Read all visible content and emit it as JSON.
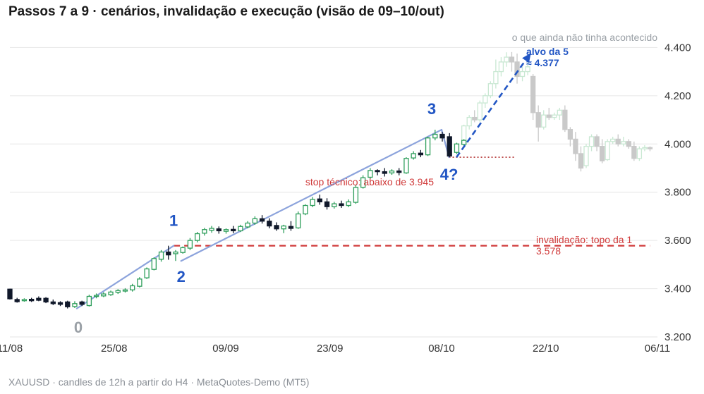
{
  "title": "Passos 7 a 9 · cenários, invalidação e execução (visão de 09–10/out)",
  "footer": "XAUUSD · candles de 12h a partir do H4 · MetaQuotes-Demo (MT5)",
  "colors": {
    "bull": "#2e9e5b",
    "bear": "#10182a",
    "future": "#c9c9c9",
    "future_bull": "#c9e8d3",
    "wave_line": "#8ca3dc",
    "wave_label": "#2256c4",
    "wave0_label": "#9aa0a6",
    "invalidation": "#d03a3a",
    "projection": "#2256c4",
    "grid": "#e6e6e6",
    "axis_text": "#333333"
  },
  "chart_data": {
    "type": "candlestick",
    "title": "Passos 7 a 9 · cenários, invalidação e execução (visão de 09–10/out)",
    "ylim": [
      3200,
      4480
    ],
    "y_ticks": [
      "4.400",
      "4.200",
      "4.000",
      "3.800",
      "3.600",
      "3.400",
      "3.200"
    ],
    "y_tick_values": [
      4400,
      4200,
      4000,
      3800,
      3600,
      3400,
      3200
    ],
    "x_range": [
      "2025-08-11",
      "2025-11-06"
    ],
    "x_ticks": [
      "11/08",
      "25/08",
      "09/09",
      "23/09",
      "08/10",
      "22/10",
      "06/11"
    ],
    "x_tick_dates": [
      "2025-08-11",
      "2025-08-25",
      "2025-09-09",
      "2025-09-23",
      "2025-10-08",
      "2025-10-22",
      "2025-11-06"
    ],
    "candles_seen": [
      {
        "t": "2025-08-11",
        "o": 3398,
        "h": 3400,
        "c": 3358,
        "l": 3355
      },
      {
        "t": "2025-08-12",
        "o": 3355,
        "h": 3362,
        "c": 3346,
        "l": 3342
      },
      {
        "t": "2025-08-13",
        "o": 3350,
        "h": 3360,
        "c": 3355,
        "l": 3346
      },
      {
        "t": "2025-08-14",
        "o": 3356,
        "h": 3362,
        "c": 3350,
        "l": 3345
      },
      {
        "t": "2025-08-15",
        "o": 3360,
        "h": 3368,
        "c": 3352,
        "l": 3348
      },
      {
        "t": "2025-08-16",
        "o": 3360,
        "h": 3365,
        "c": 3345,
        "l": 3340
      },
      {
        "t": "2025-08-17",
        "o": 3345,
        "h": 3355,
        "c": 3338,
        "l": 3332
      },
      {
        "t": "2025-08-18",
        "o": 3342,
        "h": 3348,
        "c": 3335,
        "l": 3328
      },
      {
        "t": "2025-08-19",
        "o": 3345,
        "h": 3350,
        "c": 3325,
        "l": 3318
      },
      {
        "t": "2025-08-20",
        "o": 3326,
        "h": 3348,
        "c": 3338,
        "l": 3320
      },
      {
        "t": "2025-08-21",
        "o": 3345,
        "h": 3350,
        "c": 3335,
        "l": 3328
      },
      {
        "t": "2025-08-22",
        "o": 3330,
        "h": 3375,
        "c": 3368,
        "l": 3326
      },
      {
        "t": "2025-08-23",
        "o": 3368,
        "h": 3380,
        "c": 3372,
        "l": 3360
      },
      {
        "t": "2025-08-24",
        "o": 3370,
        "h": 3385,
        "c": 3378,
        "l": 3365
      },
      {
        "t": "2025-08-25",
        "o": 3375,
        "h": 3392,
        "c": 3386,
        "l": 3370
      },
      {
        "t": "2025-08-26",
        "o": 3385,
        "h": 3398,
        "c": 3392,
        "l": 3378
      },
      {
        "t": "2025-08-27",
        "o": 3390,
        "h": 3402,
        "c": 3395,
        "l": 3384
      },
      {
        "t": "2025-08-28",
        "o": 3395,
        "h": 3420,
        "c": 3412,
        "l": 3388
      },
      {
        "t": "2025-08-29",
        "o": 3410,
        "h": 3448,
        "c": 3440,
        "l": 3405
      },
      {
        "t": "2025-08-30",
        "o": 3445,
        "h": 3488,
        "c": 3482,
        "l": 3440
      },
      {
        "t": "2025-08-31",
        "o": 3480,
        "h": 3530,
        "c": 3525,
        "l": 3476
      },
      {
        "t": "2025-09-01",
        "o": 3522,
        "h": 3560,
        "c": 3552,
        "l": 3512
      },
      {
        "t": "2025-09-02",
        "o": 3552,
        "h": 3578,
        "c": 3540,
        "l": 3520
      },
      {
        "t": "2025-09-03",
        "o": 3545,
        "h": 3560,
        "c": 3552,
        "l": 3515
      },
      {
        "t": "2025-09-04",
        "o": 3550,
        "h": 3575,
        "c": 3570,
        "l": 3545
      },
      {
        "t": "2025-09-05",
        "o": 3568,
        "h": 3610,
        "c": 3600,
        "l": 3560
      },
      {
        "t": "2025-09-06",
        "o": 3600,
        "h": 3635,
        "c": 3628,
        "l": 3592
      },
      {
        "t": "2025-09-07",
        "o": 3630,
        "h": 3652,
        "c": 3645,
        "l": 3620
      },
      {
        "t": "2025-09-08",
        "o": 3642,
        "h": 3660,
        "c": 3650,
        "l": 3632
      },
      {
        "t": "2025-09-09",
        "o": 3648,
        "h": 3658,
        "c": 3640,
        "l": 3628
      },
      {
        "t": "2025-09-10",
        "o": 3638,
        "h": 3650,
        "c": 3645,
        "l": 3628
      },
      {
        "t": "2025-09-11",
        "o": 3646,
        "h": 3660,
        "c": 3640,
        "l": 3630
      },
      {
        "t": "2025-09-12",
        "o": 3640,
        "h": 3665,
        "c": 3658,
        "l": 3635
      },
      {
        "t": "2025-09-13",
        "o": 3656,
        "h": 3680,
        "c": 3672,
        "l": 3650
      },
      {
        "t": "2025-09-14",
        "o": 3672,
        "h": 3700,
        "c": 3690,
        "l": 3665
      },
      {
        "t": "2025-09-15",
        "o": 3690,
        "h": 3705,
        "c": 3680,
        "l": 3670
      },
      {
        "t": "2025-09-16",
        "o": 3680,
        "h": 3692,
        "c": 3660,
        "l": 3650
      },
      {
        "t": "2025-09-17",
        "o": 3662,
        "h": 3675,
        "c": 3648,
        "l": 3640
      },
      {
        "t": "2025-09-18",
        "o": 3648,
        "h": 3665,
        "c": 3660,
        "l": 3630
      },
      {
        "t": "2025-09-19",
        "o": 3658,
        "h": 3680,
        "c": 3650,
        "l": 3640
      },
      {
        "t": "2025-09-20",
        "o": 3652,
        "h": 3720,
        "c": 3710,
        "l": 3648
      },
      {
        "t": "2025-09-21",
        "o": 3710,
        "h": 3750,
        "c": 3745,
        "l": 3705
      },
      {
        "t": "2025-09-22",
        "o": 3745,
        "h": 3780,
        "c": 3770,
        "l": 3738
      },
      {
        "t": "2025-09-23",
        "o": 3772,
        "h": 3790,
        "c": 3760,
        "l": 3748
      },
      {
        "t": "2025-09-24",
        "o": 3760,
        "h": 3775,
        "c": 3740,
        "l": 3728
      },
      {
        "t": "2025-09-25",
        "o": 3740,
        "h": 3760,
        "c": 3752,
        "l": 3732
      },
      {
        "t": "2025-09-26",
        "o": 3752,
        "h": 3765,
        "c": 3745,
        "l": 3735
      },
      {
        "t": "2025-09-27",
        "o": 3745,
        "h": 3770,
        "c": 3760,
        "l": 3738
      },
      {
        "t": "2025-09-28",
        "o": 3758,
        "h": 3830,
        "c": 3820,
        "l": 3752
      },
      {
        "t": "2025-09-29",
        "o": 3820,
        "h": 3870,
        "c": 3860,
        "l": 3815
      },
      {
        "t": "2025-09-30",
        "o": 3862,
        "h": 3900,
        "c": 3890,
        "l": 3855
      },
      {
        "t": "2025-10-01",
        "o": 3890,
        "h": 3895,
        "c": 3885,
        "l": 3870
      },
      {
        "t": "2025-10-02",
        "o": 3885,
        "h": 3900,
        "c": 3878,
        "l": 3865
      },
      {
        "t": "2025-10-03",
        "o": 3880,
        "h": 3895,
        "c": 3888,
        "l": 3872
      },
      {
        "t": "2025-10-04",
        "o": 3888,
        "h": 3900,
        "c": 3882,
        "l": 3870
      },
      {
        "t": "2025-10-05",
        "o": 3880,
        "h": 3945,
        "c": 3940,
        "l": 3876
      },
      {
        "t": "2025-10-06",
        "o": 3942,
        "h": 3970,
        "c": 3960,
        "l": 3935
      },
      {
        "t": "2025-10-07",
        "o": 3962,
        "h": 3975,
        "c": 3955,
        "l": 3945
      },
      {
        "t": "2025-10-08",
        "o": 3955,
        "h": 4030,
        "c": 4025,
        "l": 3950
      },
      {
        "t": "2025-10-08",
        "o": 4025,
        "h": 4059,
        "c": 4040,
        "l": 4015
      },
      {
        "t": "2025-10-09",
        "o": 4040,
        "h": 4050,
        "c": 4025,
        "l": 4010
      },
      {
        "t": "2025-10-09",
        "o": 4030,
        "h": 4045,
        "c": 3950,
        "l": 3945
      },
      {
        "t": "2025-10-10",
        "o": 3965,
        "h": 4005,
        "c": 4000,
        "l": 3958
      },
      {
        "t": "2025-10-10",
        "o": 3998,
        "h": 4020,
        "c": 4015,
        "l": 3990
      }
    ],
    "candles_future": [
      {
        "t": "2025-10-11",
        "o": 4010,
        "h": 4080,
        "c": 4075,
        "l": 4005
      },
      {
        "t": "2025-10-12",
        "o": 4075,
        "h": 4120,
        "c": 4110,
        "l": 4060
      },
      {
        "t": "2025-10-13",
        "o": 4110,
        "h": 4140,
        "c": 4100,
        "l": 4090
      },
      {
        "t": "2025-10-14",
        "o": 4100,
        "h": 4180,
        "c": 4170,
        "l": 4092
      },
      {
        "t": "2025-10-15",
        "o": 4170,
        "h": 4210,
        "c": 4200,
        "l": 4150
      },
      {
        "t": "2025-10-16",
        "o": 4200,
        "h": 4260,
        "c": 4250,
        "l": 4190
      },
      {
        "t": "2025-10-17",
        "o": 4250,
        "h": 4350,
        "c": 4300,
        "l": 4230
      },
      {
        "t": "2025-10-18",
        "o": 4300,
        "h": 4360,
        "c": 4340,
        "l": 4280
      },
      {
        "t": "2025-10-19",
        "o": 4340,
        "h": 4380,
        "c": 4360,
        "l": 4320
      },
      {
        "t": "2025-10-20",
        "o": 4360,
        "h": 4381,
        "c": 4340,
        "l": 4300
      },
      {
        "t": "2025-10-20",
        "o": 4340,
        "h": 4375,
        "c": 4280,
        "l": 4250
      },
      {
        "t": "2025-10-21",
        "o": 4280,
        "h": 4320,
        "c": 4300,
        "l": 4260
      },
      {
        "t": "2025-10-21",
        "o": 4300,
        "h": 4340,
        "c": 4320,
        "l": 4285
      },
      {
        "t": "2025-10-22",
        "o": 4280,
        "h": 4290,
        "c": 4130,
        "l": 4100
      },
      {
        "t": "2025-10-22",
        "o": 4130,
        "h": 4160,
        "c": 4070,
        "l": 4010
      },
      {
        "t": "2025-10-23",
        "o": 4070,
        "h": 4140,
        "c": 4120,
        "l": 4060
      },
      {
        "t": "2025-10-24",
        "o": 4120,
        "h": 4150,
        "c": 4110,
        "l": 4100
      },
      {
        "t": "2025-10-25",
        "o": 4110,
        "h": 4130,
        "c": 4120,
        "l": 4100
      },
      {
        "t": "2025-10-26",
        "o": 4120,
        "h": 4150,
        "c": 4140,
        "l": 4100
      },
      {
        "t": "2025-10-27",
        "o": 4140,
        "h": 4160,
        "c": 4060,
        "l": 4050
      },
      {
        "t": "2025-10-28",
        "o": 4060,
        "h": 4070,
        "c": 4020,
        "l": 3990
      },
      {
        "t": "2025-10-28",
        "o": 4020,
        "h": 4050,
        "c": 3960,
        "l": 3930
      },
      {
        "t": "2025-10-29",
        "o": 3960,
        "h": 3990,
        "c": 3900,
        "l": 3886
      },
      {
        "t": "2025-10-30",
        "o": 3910,
        "h": 4000,
        "c": 3990,
        "l": 3900
      },
      {
        "t": "2025-10-30",
        "o": 3990,
        "h": 4040,
        "c": 4030,
        "l": 3970
      },
      {
        "t": "2025-10-31",
        "o": 4030,
        "h": 4040,
        "c": 3990,
        "l": 3970
      },
      {
        "t": "2025-10-31",
        "o": 3990,
        "h": 4020,
        "c": 3930,
        "l": 3920
      },
      {
        "t": "2025-11-01",
        "o": 3935,
        "h": 4020,
        "c": 4010,
        "l": 3930
      },
      {
        "t": "2025-11-02",
        "o": 4010,
        "h": 4030,
        "c": 4020,
        "l": 4000
      },
      {
        "t": "2025-11-02",
        "o": 4020,
        "h": 4040,
        "c": 4000,
        "l": 3990
      },
      {
        "t": "2025-11-03",
        "o": 4000,
        "h": 4030,
        "c": 4010,
        "l": 3990
      },
      {
        "t": "2025-11-03",
        "o": 4010,
        "h": 4020,
        "c": 3990,
        "l": 3980
      },
      {
        "t": "2025-11-04",
        "o": 3990,
        "h": 4010,
        "c": 3940,
        "l": 3930
      },
      {
        "t": "2025-11-04",
        "o": 3940,
        "h": 3990,
        "c": 3980,
        "l": 3930
      },
      {
        "t": "2025-11-05",
        "o": 3980,
        "h": 3995,
        "c": 3985,
        "l": 3970
      },
      {
        "t": "2025-11-05",
        "o": 3985,
        "h": 3990,
        "c": 3980,
        "l": 3970
      }
    ],
    "waves": [
      {
        "label": "0",
        "t": "2025-08-20",
        "price": 3318
      },
      {
        "label": "1",
        "t": "2025-09-02",
        "price": 3578
      },
      {
        "label": "2",
        "t": "2025-09-03",
        "price": 3515
      },
      {
        "label": "3",
        "t": "2025-10-08",
        "price": 4059
      },
      {
        "label": "4?",
        "t": "2025-10-09",
        "price": 3945
      }
    ],
    "projection": {
      "from_t": "2025-10-10",
      "from_price": 3945,
      "to_t": "2025-10-20",
      "to_price": 4377
    },
    "levels": [
      {
        "name": "invalidation",
        "price": 3578,
        "from_t": "2025-09-02",
        "to_t": "2025-11-06"
      },
      {
        "name": "stop",
        "price": 3945,
        "from_t": "2025-10-09",
        "to_t": "2025-10-18"
      }
    ],
    "annotations": {
      "future_note": "o que ainda não tinha acontecido",
      "target_line1": "alvo da 5",
      "target_line2": "≈ 4.377",
      "stop_label": "stop técnico: abaixo de 3.945",
      "invalidation_line1": "invalidação: topo da 1",
      "invalidation_line2": "3.578"
    },
    "grid": true
  }
}
